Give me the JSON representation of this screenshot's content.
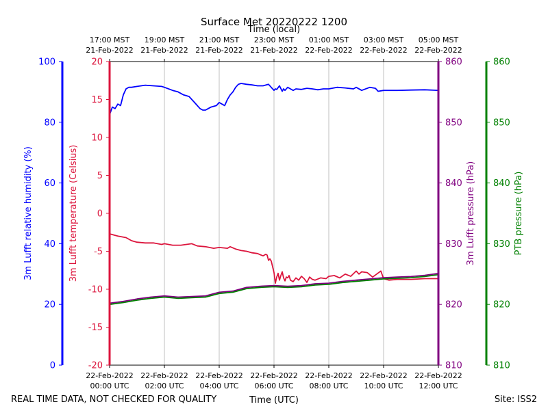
{
  "chart_data": {
    "type": "line",
    "title": "Surface Met 20220222 1200",
    "top_axis_label": "Time (local)",
    "bottom_axis_label": "Time (UTC)",
    "footer_left": "REAL TIME DATA, NOT CHECKED FOR QUALITY",
    "footer_right": "Site: ISS2",
    "x_range_hours": [
      0,
      12
    ],
    "bottom_ticks": [
      {
        "hour": 0,
        "line1": "22-Feb-2022",
        "line2": "00:00 UTC"
      },
      {
        "hour": 2,
        "line1": "22-Feb-2022",
        "line2": "02:00 UTC"
      },
      {
        "hour": 4,
        "line1": "22-Feb-2022",
        "line2": "04:00 UTC"
      },
      {
        "hour": 6,
        "line1": "22-Feb-2022",
        "line2": "06:00 UTC"
      },
      {
        "hour": 8,
        "line1": "22-Feb-2022",
        "line2": "08:00 UTC"
      },
      {
        "hour": 10,
        "line1": "22-Feb-2022",
        "line2": "10:00 UTC"
      },
      {
        "hour": 12,
        "line1": "22-Feb-2022",
        "line2": "12:00 UTC"
      }
    ],
    "top_ticks": [
      {
        "hour": 0,
        "line1": "17:00 MST",
        "line2": "21-Feb-2022"
      },
      {
        "hour": 2,
        "line1": "19:00 MST",
        "line2": "21-Feb-2022"
      },
      {
        "hour": 4,
        "line1": "21:00 MST",
        "line2": "21-Feb-2022"
      },
      {
        "hour": 6,
        "line1": "23:00 MST",
        "line2": "21-Feb-2022"
      },
      {
        "hour": 8,
        "line1": "01:00 MST",
        "line2": "22-Feb-2022"
      },
      {
        "hour": 10,
        "line1": "03:00 MST",
        "line2": "22-Feb-2022"
      },
      {
        "hour": 12,
        "line1": "05:00 MST",
        "line2": "22-Feb-2022"
      }
    ],
    "axes": [
      {
        "id": "rh",
        "label": "3m Lufft relative humidity (%)",
        "color": "#0000ff",
        "range": [
          0,
          100
        ],
        "ticks": [
          0,
          20,
          40,
          60,
          80,
          100
        ]
      },
      {
        "id": "temp",
        "label": "3m Lufft temperature (Celsius)",
        "color": "#dc143c",
        "range": [
          -20,
          20
        ],
        "ticks": [
          -20,
          -15,
          -10,
          -5,
          0,
          5,
          10,
          15,
          20
        ]
      },
      {
        "id": "pres",
        "label": "3m Lufft pressure (hPa)",
        "color": "#800080",
        "range": [
          810,
          860
        ],
        "ticks": [
          810,
          820,
          830,
          840,
          850,
          860
        ]
      },
      {
        "id": "ptb",
        "label": "PTB pressure (hPa)",
        "color": "#008000",
        "range": [
          810,
          860
        ],
        "ticks": [
          810,
          820,
          830,
          840,
          850,
          860
        ]
      }
    ],
    "series": [
      {
        "name": "3m Lufft relative humidity",
        "axis": "rh",
        "color": "#0000ff",
        "x": [
          0,
          0.1,
          0.2,
          0.3,
          0.4,
          0.5,
          0.6,
          0.7,
          0.8,
          1.0,
          1.3,
          1.6,
          1.9,
          2.0,
          2.3,
          2.5,
          2.7,
          2.9,
          3.0,
          3.1,
          3.2,
          3.3,
          3.4,
          3.5,
          3.6,
          3.7,
          3.9,
          4.0,
          4.1,
          4.2,
          4.3,
          4.4,
          4.5,
          4.6,
          4.7,
          4.8,
          5.0,
          5.2,
          5.4,
          5.6,
          5.8,
          6.0,
          6.05,
          6.1,
          6.2,
          6.3,
          6.35,
          6.4,
          6.5,
          6.6,
          6.7,
          6.8,
          7.0,
          7.2,
          7.4,
          7.6,
          7.8,
          8.0,
          8.3,
          8.6,
          8.9,
          9.0,
          9.2,
          9.5,
          9.7,
          9.8,
          10.0,
          10.5,
          11.0,
          11.5,
          12.0
        ],
        "values": [
          82.5,
          85,
          84.5,
          86,
          85.5,
          89,
          91,
          91.5,
          91.5,
          91.8,
          92.2,
          92,
          91.8,
          91.5,
          90.5,
          90,
          89,
          88.5,
          87.5,
          86.5,
          85.5,
          84.5,
          84,
          84,
          84.5,
          85,
          85.5,
          86.5,
          86,
          85.5,
          87.5,
          89,
          90,
          91.5,
          92.5,
          92.8,
          92.5,
          92.3,
          92,
          92,
          92.5,
          90.5,
          91,
          90.8,
          92,
          90.2,
          91,
          90.5,
          91.5,
          91,
          90.5,
          91,
          90.8,
          91.2,
          91,
          90.7,
          91,
          91,
          91.5,
          91.3,
          91,
          91.5,
          90.5,
          91.5,
          91.2,
          90.2,
          90.5,
          90.5,
          90.6,
          90.7,
          90.5
        ]
      },
      {
        "name": "3m Lufft temperature",
        "axis": "temp",
        "color": "#dc143c",
        "x": [
          0,
          0.3,
          0.6,
          0.8,
          1.0,
          1.3,
          1.6,
          1.9,
          2.0,
          2.3,
          2.6,
          3.0,
          3.2,
          3.5,
          3.8,
          4.0,
          4.3,
          4.4,
          4.6,
          4.8,
          5.0,
          5.2,
          5.4,
          5.6,
          5.7,
          5.75,
          5.8,
          5.85,
          5.9,
          6.0,
          6.05,
          6.1,
          6.15,
          6.2,
          6.25,
          6.3,
          6.35,
          6.4,
          6.45,
          6.5,
          6.55,
          6.6,
          6.7,
          6.8,
          6.9,
          7.0,
          7.1,
          7.2,
          7.3,
          7.4,
          7.5,
          7.7,
          7.9,
          8.0,
          8.2,
          8.4,
          8.6,
          8.8,
          9.0,
          9.1,
          9.2,
          9.4,
          9.6,
          9.9,
          10.0,
          10.2,
          10.5,
          11.0,
          11.5,
          12.0
        ],
        "values": [
          -2.7,
          -3.0,
          -3.2,
          -3.6,
          -3.8,
          -3.9,
          -3.9,
          -4.1,
          -4.0,
          -4.2,
          -4.2,
          -4.0,
          -4.3,
          -4.4,
          -4.6,
          -4.5,
          -4.6,
          -4.4,
          -4.7,
          -4.9,
          -5.0,
          -5.2,
          -5.3,
          -5.6,
          -5.4,
          -5.5,
          -6.2,
          -6.0,
          -6.3,
          -7.8,
          -9.2,
          -8.4,
          -7.9,
          -8.8,
          -8.2,
          -7.7,
          -8.5,
          -8.9,
          -8.4,
          -8.5,
          -8.2,
          -8.8,
          -9.0,
          -8.5,
          -8.8,
          -8.3,
          -8.6,
          -9.1,
          -8.4,
          -8.7,
          -8.8,
          -8.5,
          -8.6,
          -8.3,
          -8.2,
          -8.5,
          -8.0,
          -8.3,
          -7.6,
          -8.0,
          -7.7,
          -7.8,
          -8.4,
          -7.6,
          -8.6,
          -8.8,
          -8.7,
          -8.7,
          -8.6,
          -8.6
        ]
      },
      {
        "name": "3m Lufft pressure",
        "axis": "pres",
        "color": "#800080",
        "x": [
          0,
          0.5,
          1.0,
          1.5,
          2.0,
          2.5,
          3.0,
          3.5,
          4.0,
          4.5,
          5.0,
          5.5,
          6.0,
          6.5,
          7.0,
          7.5,
          8.0,
          8.5,
          9.0,
          9.5,
          10.0,
          10.5,
          11.0,
          11.5,
          12.0
        ],
        "values": [
          820.2,
          820.5,
          820.9,
          821.2,
          821.4,
          821.2,
          821.3,
          821.4,
          822.0,
          822.2,
          822.8,
          823.0,
          823.1,
          823.0,
          823.1,
          823.4,
          823.5,
          823.8,
          824.0,
          824.2,
          824.4,
          824.5,
          824.6,
          824.8,
          825.1
        ]
      },
      {
        "name": "PTB pressure",
        "axis": "ptb",
        "color": "#008000",
        "x": [
          0,
          0.5,
          1.0,
          1.5,
          2.0,
          2.5,
          3.0,
          3.5,
          4.0,
          4.5,
          5.0,
          5.5,
          6.0,
          6.5,
          7.0,
          7.5,
          8.0,
          8.5,
          9.0,
          9.5,
          10.0,
          10.5,
          11.0,
          11.5,
          12.0
        ],
        "values": [
          820.0,
          820.3,
          820.7,
          821.0,
          821.2,
          821.0,
          821.1,
          821.2,
          821.8,
          822.0,
          822.6,
          822.8,
          822.9,
          822.8,
          822.9,
          823.2,
          823.3,
          823.6,
          823.8,
          824.0,
          824.2,
          824.3,
          824.4,
          824.6,
          824.9
        ]
      }
    ]
  }
}
